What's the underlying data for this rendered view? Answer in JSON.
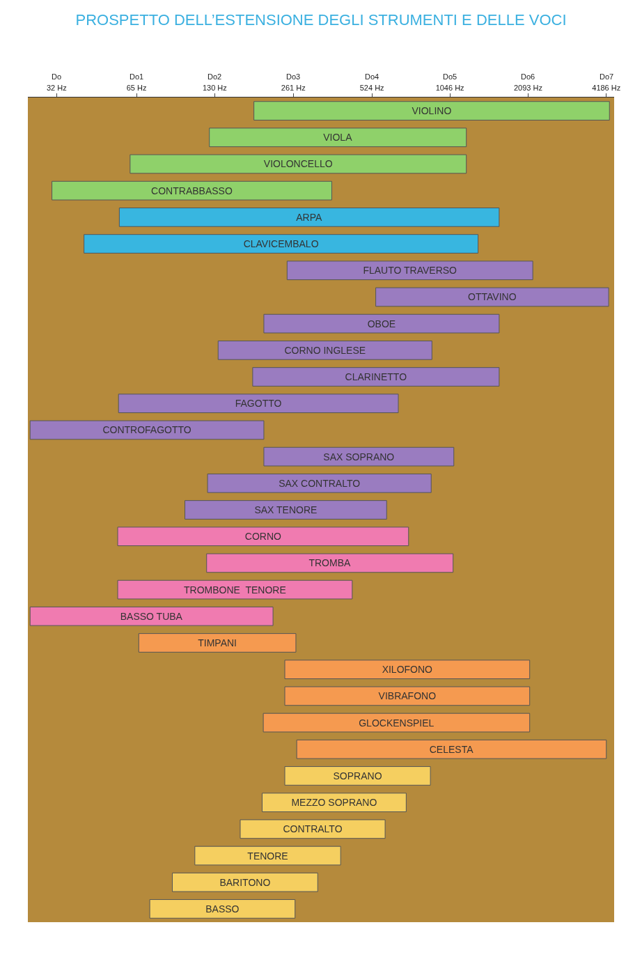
{
  "chart_data": {
    "type": "bar",
    "orientation": "horizontal",
    "title": "PROSPETTO DELL’ESTENSIONE DEGLI STRUMENTI E DELLE VOCI",
    "categories": [
      "VIOLINO",
      "VIOLA",
      "VIOLONCELLO",
      "CONTRABBASSO",
      "ARPA",
      "CLAVICEMBALO",
      "FLAUTO TRAVERSO",
      "OTTAVINO",
      "OBOE",
      "CORNO INGLESE",
      "CLARINETTO",
      "FAGOTTO",
      "CONTROFAGOTTO",
      "SAX SOPRANO",
      "SAX CONTRALTO",
      "SAX TENORE",
      "CORNO",
      "TROMBA",
      "TROMBONE  TENORE",
      "BASSO TUBA",
      "TIMPANI",
      "XILOFONO",
      "VIBRAFONO",
      "GLOCKENSPIEL",
      "CELESTA",
      "SOPRANO",
      "MEZZO SOPRANO",
      "CONTRALTO",
      "TENORE",
      "BARITONO",
      "BASSO"
    ],
    "base": [
      184,
      124,
      61.4,
      30.7,
      55.8,
      40.8,
      247,
      542,
      201,
      134,
      182,
      55.4,
      25.3,
      201,
      122,
      99.8,
      55,
      121,
      55,
      25.3,
      66.3,
      242,
      242,
      200,
      269,
      242,
      198,
      163,
      109,
      89.3,
      73.1
    ],
    "values": [
      4120,
      1086,
      1148.6,
      336.3,
      1563.2,
      1302.2,
      1934,
      3732,
      1418,
      758,
      1437,
      606.6,
      175.7,
      882,
      764,
      497.2,
      670,
      955,
      385,
      192.7,
      200.7,
      1880,
      1880,
      1922,
      3917,
      638,
      512,
      426,
      288,
      234.7,
      191.9
    ],
    "colors": [
      "#8fd16a",
      "#8fd16a",
      "#8fd16a",
      "#8fd16a",
      "#38b6e0",
      "#38b6e0",
      "#9a7cc0",
      "#9a7cc0",
      "#9a7cc0",
      "#9a7cc0",
      "#9a7cc0",
      "#9a7cc0",
      "#9a7cc0",
      "#9a7cc0",
      "#9a7cc0",
      "#9a7cc0",
      "#f07bb0",
      "#f07bb0",
      "#f07bb0",
      "#f07bb0",
      "#f59a50",
      "#f59a50",
      "#f59a50",
      "#f59a50",
      "#f59a50",
      "#f5cf60",
      "#f5cf60",
      "#f5cf60",
      "#f5cf60",
      "#f5cf60",
      "#f5cf60"
    ],
    "log": "x",
    "xlim": [
      24.8,
      4487
    ],
    "xticks": [
      {
        "value": 32,
        "label": "32 Hz"
      },
      {
        "value": 65,
        "label": "65 Hz"
      },
      {
        "value": 130,
        "label": "130 Hz"
      },
      {
        "value": 261,
        "label": "261 Hz"
      },
      {
        "value": 524,
        "label": "524 Hz"
      },
      {
        "value": 1046,
        "label": "1046 Hz"
      },
      {
        "value": 2093,
        "label": "2093 Hz"
      },
      {
        "value": 4186,
        "label": "4186 Hz"
      }
    ],
    "annotations": [
      "Do",
      "Do1",
      "Do2",
      "Do3",
      "Do4",
      "Do5",
      "Do6",
      "Do7"
    ],
    "tick_labels": "x",
    "grid": false
  }
}
